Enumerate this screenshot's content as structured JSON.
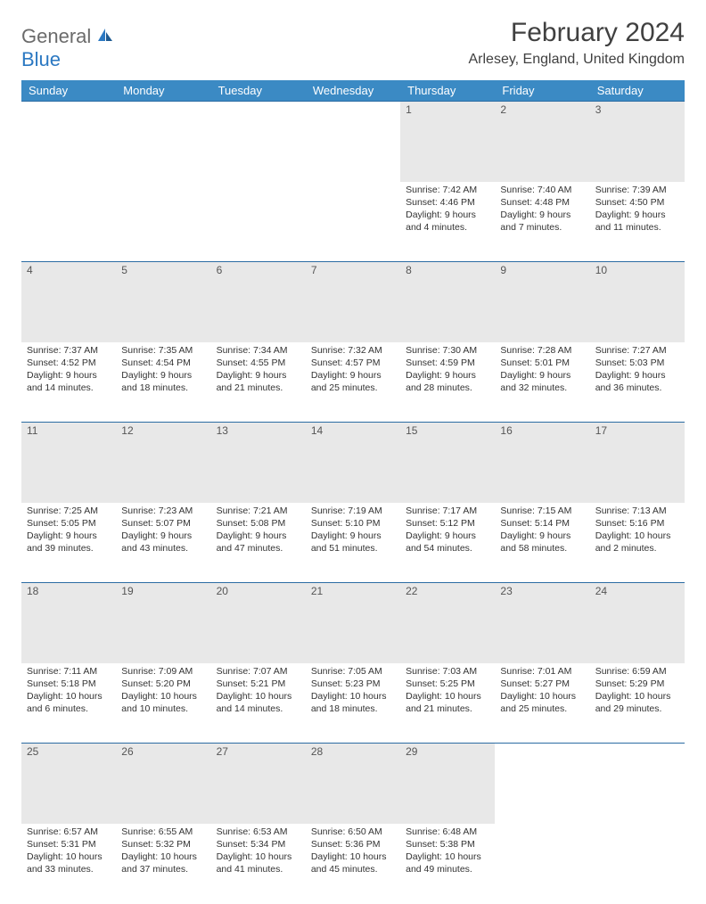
{
  "brand": {
    "part1": "General",
    "part2": "Blue"
  },
  "title": "February 2024",
  "location": "Arlesey, England, United Kingdom",
  "colors": {
    "header_bg": "#3b8ac4",
    "header_text": "#ffffff",
    "daynum_bg": "#e8e8e8",
    "row_border": "#2b6ca3",
    "text": "#333333",
    "brand_grey": "#6b6b6b",
    "brand_blue": "#2b78c2"
  },
  "weekdays": [
    "Sunday",
    "Monday",
    "Tuesday",
    "Wednesday",
    "Thursday",
    "Friday",
    "Saturday"
  ],
  "weeks": [
    [
      null,
      null,
      null,
      null,
      {
        "d": "1",
        "sr": "7:42 AM",
        "ss": "4:46 PM",
        "dl1": "Daylight: 9 hours",
        "dl2": "and 4 minutes."
      },
      {
        "d": "2",
        "sr": "7:40 AM",
        "ss": "4:48 PM",
        "dl1": "Daylight: 9 hours",
        "dl2": "and 7 minutes."
      },
      {
        "d": "3",
        "sr": "7:39 AM",
        "ss": "4:50 PM",
        "dl1": "Daylight: 9 hours",
        "dl2": "and 11 minutes."
      }
    ],
    [
      {
        "d": "4",
        "sr": "7:37 AM",
        "ss": "4:52 PM",
        "dl1": "Daylight: 9 hours",
        "dl2": "and 14 minutes."
      },
      {
        "d": "5",
        "sr": "7:35 AM",
        "ss": "4:54 PM",
        "dl1": "Daylight: 9 hours",
        "dl2": "and 18 minutes."
      },
      {
        "d": "6",
        "sr": "7:34 AM",
        "ss": "4:55 PM",
        "dl1": "Daylight: 9 hours",
        "dl2": "and 21 minutes."
      },
      {
        "d": "7",
        "sr": "7:32 AM",
        "ss": "4:57 PM",
        "dl1": "Daylight: 9 hours",
        "dl2": "and 25 minutes."
      },
      {
        "d": "8",
        "sr": "7:30 AM",
        "ss": "4:59 PM",
        "dl1": "Daylight: 9 hours",
        "dl2": "and 28 minutes."
      },
      {
        "d": "9",
        "sr": "7:28 AM",
        "ss": "5:01 PM",
        "dl1": "Daylight: 9 hours",
        "dl2": "and 32 minutes."
      },
      {
        "d": "10",
        "sr": "7:27 AM",
        "ss": "5:03 PM",
        "dl1": "Daylight: 9 hours",
        "dl2": "and 36 minutes."
      }
    ],
    [
      {
        "d": "11",
        "sr": "7:25 AM",
        "ss": "5:05 PM",
        "dl1": "Daylight: 9 hours",
        "dl2": "and 39 minutes."
      },
      {
        "d": "12",
        "sr": "7:23 AM",
        "ss": "5:07 PM",
        "dl1": "Daylight: 9 hours",
        "dl2": "and 43 minutes."
      },
      {
        "d": "13",
        "sr": "7:21 AM",
        "ss": "5:08 PM",
        "dl1": "Daylight: 9 hours",
        "dl2": "and 47 minutes."
      },
      {
        "d": "14",
        "sr": "7:19 AM",
        "ss": "5:10 PM",
        "dl1": "Daylight: 9 hours",
        "dl2": "and 51 minutes."
      },
      {
        "d": "15",
        "sr": "7:17 AM",
        "ss": "5:12 PM",
        "dl1": "Daylight: 9 hours",
        "dl2": "and 54 minutes."
      },
      {
        "d": "16",
        "sr": "7:15 AM",
        "ss": "5:14 PM",
        "dl1": "Daylight: 9 hours",
        "dl2": "and 58 minutes."
      },
      {
        "d": "17",
        "sr": "7:13 AM",
        "ss": "5:16 PM",
        "dl1": "Daylight: 10 hours",
        "dl2": "and 2 minutes."
      }
    ],
    [
      {
        "d": "18",
        "sr": "7:11 AM",
        "ss": "5:18 PM",
        "dl1": "Daylight: 10 hours",
        "dl2": "and 6 minutes."
      },
      {
        "d": "19",
        "sr": "7:09 AM",
        "ss": "5:20 PM",
        "dl1": "Daylight: 10 hours",
        "dl2": "and 10 minutes."
      },
      {
        "d": "20",
        "sr": "7:07 AM",
        "ss": "5:21 PM",
        "dl1": "Daylight: 10 hours",
        "dl2": "and 14 minutes."
      },
      {
        "d": "21",
        "sr": "7:05 AM",
        "ss": "5:23 PM",
        "dl1": "Daylight: 10 hours",
        "dl2": "and 18 minutes."
      },
      {
        "d": "22",
        "sr": "7:03 AM",
        "ss": "5:25 PM",
        "dl1": "Daylight: 10 hours",
        "dl2": "and 21 minutes."
      },
      {
        "d": "23",
        "sr": "7:01 AM",
        "ss": "5:27 PM",
        "dl1": "Daylight: 10 hours",
        "dl2": "and 25 minutes."
      },
      {
        "d": "24",
        "sr": "6:59 AM",
        "ss": "5:29 PM",
        "dl1": "Daylight: 10 hours",
        "dl2": "and 29 minutes."
      }
    ],
    [
      {
        "d": "25",
        "sr": "6:57 AM",
        "ss": "5:31 PM",
        "dl1": "Daylight: 10 hours",
        "dl2": "and 33 minutes."
      },
      {
        "d": "26",
        "sr": "6:55 AM",
        "ss": "5:32 PM",
        "dl1": "Daylight: 10 hours",
        "dl2": "and 37 minutes."
      },
      {
        "d": "27",
        "sr": "6:53 AM",
        "ss": "5:34 PM",
        "dl1": "Daylight: 10 hours",
        "dl2": "and 41 minutes."
      },
      {
        "d": "28",
        "sr": "6:50 AM",
        "ss": "5:36 PM",
        "dl1": "Daylight: 10 hours",
        "dl2": "and 45 minutes."
      },
      {
        "d": "29",
        "sr": "6:48 AM",
        "ss": "5:38 PM",
        "dl1": "Daylight: 10 hours",
        "dl2": "and 49 minutes."
      },
      null,
      null
    ]
  ],
  "labels": {
    "sunrise": "Sunrise: ",
    "sunset": "Sunset: "
  }
}
